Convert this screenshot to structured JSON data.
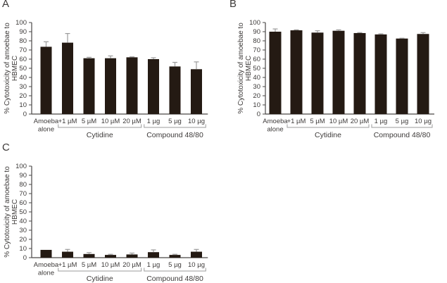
{
  "figure": {
    "panels": [
      {
        "letter": "A"
      },
      {
        "letter": "B"
      },
      {
        "letter": "C"
      }
    ]
  },
  "colors": {
    "bar": "#241a13",
    "axis": "#4a4746",
    "text": "#3d3a39",
    "error_bar": "#9b9b9b",
    "bracket": "#9b9b9b",
    "background": "#ffffff"
  },
  "chart_data": [
    {
      "type": "bar",
      "panel": "A",
      "title": "",
      "ylabel_line1": "% Cytotoxicity of amoebae to",
      "ylabel_line2": "HBMEC",
      "ylim": [
        0,
        100
      ],
      "ytick_step": 10,
      "ytick_labels": [
        "0",
        "10",
        "20",
        "30",
        "40",
        "50",
        "60",
        "70",
        "80",
        "90",
        "100"
      ],
      "grid": "off",
      "categories": [
        "Amoeba\nalone",
        "+1 µM",
        "5 µM",
        "10 µM",
        "20 µM",
        "1 µg",
        "5 µg",
        "10 µg"
      ],
      "values": [
        73.5,
        78,
        61,
        61,
        62,
        60,
        52,
        49
      ],
      "errors_up": [
        5.5,
        10,
        1,
        2.5,
        0.5,
        1.5,
        4.5,
        8
      ],
      "groups": [
        {
          "label": "Cytidine",
          "start_index": 1,
          "end_index": 4
        },
        {
          "label": "Compound 48/80",
          "start_index": 5,
          "end_index": 7
        }
      ]
    },
    {
      "type": "bar",
      "panel": "B",
      "title": "",
      "ylabel_line1": "% Cytotoxicity of amoebae to",
      "ylabel_line2": "HBMEC",
      "ylim": [
        0,
        100
      ],
      "ytick_step": 10,
      "ytick_labels": [
        "0",
        "10",
        "20",
        "30",
        "40",
        "50",
        "60",
        "70",
        "80",
        "90",
        "100"
      ],
      "grid": "off",
      "categories": [
        "Amoeba\nalone",
        "+1 µM",
        "5 µM",
        "10 µM",
        "20 µM",
        "1 µg",
        "5 µg",
        "10 µg"
      ],
      "values": [
        90,
        91.5,
        89,
        91,
        88.5,
        87,
        82.5,
        87.5
      ],
      "errors_up": [
        3,
        0.5,
        2,
        1,
        0.5,
        0.7,
        0.4,
        1.5
      ],
      "groups": [
        {
          "label": "Cytidine",
          "start_index": 1,
          "end_index": 4
        },
        {
          "label": "Compound 48/80",
          "start_index": 5,
          "end_index": 7
        }
      ]
    },
    {
      "type": "bar",
      "panel": "C",
      "title": "",
      "ylabel_line1": "% Cytotoxicity of amoebae to",
      "ylabel_line2": "HBMEC",
      "ylim": [
        0,
        100
      ],
      "ytick_step": 10,
      "ytick_labels": [
        "0",
        "10",
        "20",
        "30",
        "40",
        "50",
        "60",
        "70",
        "80",
        "90",
        "100"
      ],
      "grid": "off",
      "categories": [
        "Amoeba\nalone",
        "+1 µM",
        "5 µM",
        "10 µM",
        "20 µM",
        "1 µg",
        "5 µg",
        "10 µg"
      ],
      "values": [
        8.5,
        6.5,
        4,
        3,
        3.5,
        6,
        3,
        6.5
      ],
      "errors_up": [
        0,
        2.5,
        1.5,
        0.7,
        1.5,
        2.5,
        0.7,
        2.5
      ],
      "groups": [
        {
          "label": "Cytidine",
          "start_index": 1,
          "end_index": 4
        },
        {
          "label": "Compound 48/80",
          "start_index": 5,
          "end_index": 7
        }
      ]
    }
  ]
}
